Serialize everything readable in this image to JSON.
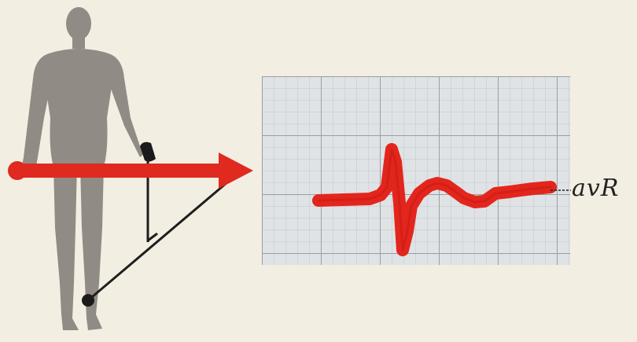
{
  "lead_label": "avR",
  "colors": {
    "paper": "#f2eee2",
    "figure": "#8f8a83",
    "arrow": "#e0291f",
    "trace": "#e3261d",
    "grid_minor": "#c3c7cb",
    "grid_major": "#9aa1a7",
    "chart_bg": "#dfe3e5",
    "wire": "#1e1e1e"
  },
  "icons": {
    "figure": "human-figure-icon",
    "arrow": "lead-vector-arrow-icon",
    "electrode": "electrode-clip-icon"
  }
}
